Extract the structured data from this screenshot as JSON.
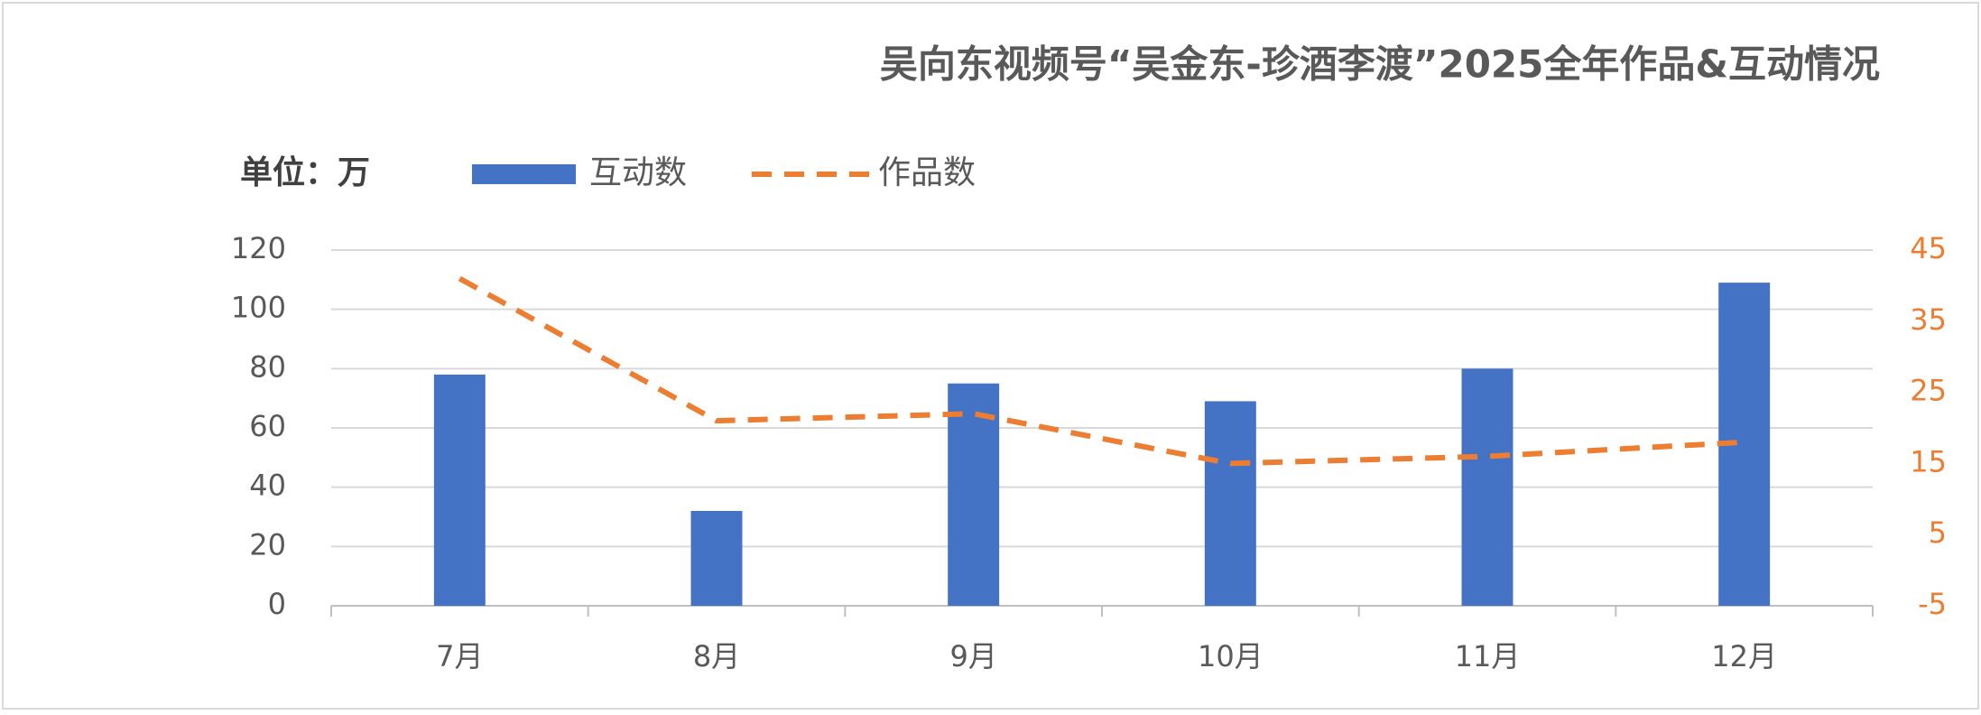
{
  "chart_data": {
    "type": "bar_line",
    "title": "吴向东视频号“吴金东-珍酒李渡”2025全年作品&互动情况",
    "unit_label": "单位：万",
    "categories": [
      "7月",
      "8月",
      "9月",
      "10月",
      "11月",
      "12月"
    ],
    "series": [
      {
        "name": "互动数",
        "type": "bar",
        "color": "#4472c4",
        "values": [
          78,
          32,
          75,
          69,
          80,
          109
        ]
      },
      {
        "name": "作品数",
        "type": "line",
        "axis": "y2",
        "color": "#ed7d31",
        "dashed": true,
        "values": [
          41,
          21,
          22,
          15,
          16,
          18
        ]
      }
    ],
    "ylim": [
      0,
      120
    ],
    "yticks": [
      0,
      20,
      40,
      60,
      80,
      100,
      120
    ],
    "y2lim": [
      -5,
      45
    ],
    "y2ticks": [
      -5,
      5,
      15,
      25,
      35,
      45
    ],
    "y2_color": "#ed7d31",
    "grid": true
  }
}
